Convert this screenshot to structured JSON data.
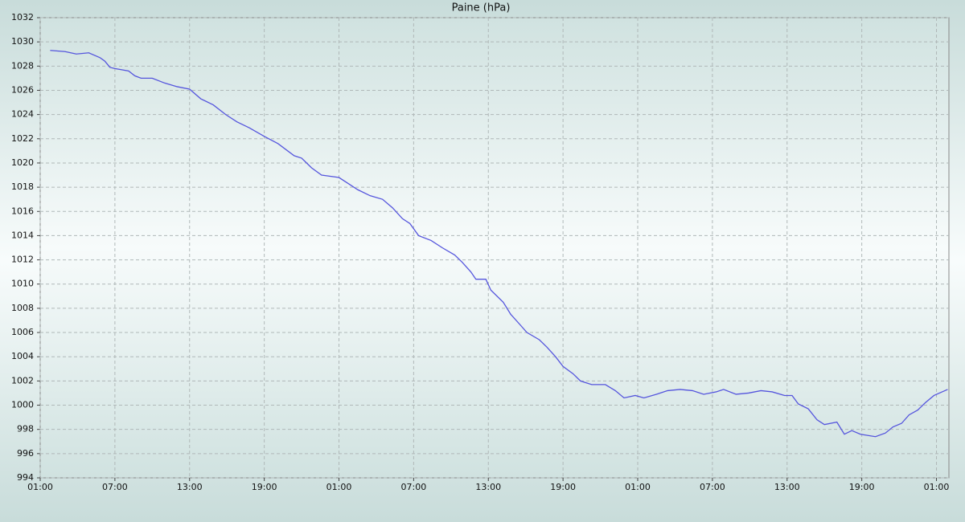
{
  "chart_data": {
    "type": "line",
    "title": "Paine (hPa)",
    "x": [
      0.8,
      2.0,
      2.9,
      3.9,
      4.8,
      5.2,
      5.6,
      6.0,
      7.1,
      7.6,
      8.1,
      9.0,
      10.0,
      11.0,
      12.0,
      12.9,
      13.9,
      14.9,
      15.8,
      16.8,
      18.0,
      19.1,
      20.4,
      21.0,
      21.8,
      22.6,
      24.0,
      24.6,
      25.5,
      26.5,
      27.5,
      28.3,
      29.1,
      29.7,
      30.4,
      31.4,
      32.3,
      33.3,
      33.9,
      34.6,
      35.0,
      35.8,
      36.2,
      37.2,
      37.8,
      38.5,
      39.1,
      40.1,
      40.7,
      41.4,
      42.0,
      42.8,
      43.4,
      44.3,
      45.4,
      46.2,
      46.9,
      47.8,
      48.5,
      49.5,
      50.4,
      51.4,
      52.4,
      53.3,
      54.3,
      54.9,
      55.9,
      56.9,
      57.9,
      58.8,
      59.8,
      60.4,
      60.9,
      61.7,
      62.4,
      63.0,
      64.0,
      64.6,
      65.2,
      65.9,
      67.1,
      67.9,
      68.5,
      69.2,
      69.8,
      70.5,
      71.1,
      71.8,
      72.9
    ],
    "series": [
      {
        "color": "#5555dd",
        "values": [
          1029.3,
          1029.2,
          1029.0,
          1029.1,
          1028.7,
          1028.4,
          1027.9,
          1027.8,
          1027.6,
          1027.2,
          1027.0,
          1027.0,
          1026.6,
          1026.3,
          1026.1,
          1025.3,
          1024.8,
          1024.0,
          1023.4,
          1022.9,
          1022.2,
          1021.6,
          1020.6,
          1020.4,
          1019.6,
          1019.0,
          1018.8,
          1018.4,
          1017.8,
          1017.3,
          1017.0,
          1016.3,
          1015.4,
          1015.0,
          1014.0,
          1013.6,
          1013.0,
          1012.4,
          1011.8,
          1011.0,
          1010.4,
          1010.4,
          1009.5,
          1008.5,
          1007.5,
          1006.7,
          1006.0,
          1005.4,
          1004.8,
          1004.0,
          1003.2,
          1002.6,
          1002.0,
          1001.7,
          1001.7,
          1001.2,
          1000.6,
          1000.8,
          1000.6,
          1000.9,
          1001.2,
          1001.3,
          1001.2,
          1000.9,
          1001.1,
          1001.3,
          1000.9,
          1001.0,
          1001.2,
          1001.1,
          1000.8,
          1000.8,
          1000.1,
          999.7,
          998.8,
          998.4,
          998.6,
          997.6,
          997.9,
          997.6,
          997.4,
          997.7,
          998.2,
          998.5,
          999.2,
          999.6,
          1000.2,
          1000.8,
          1001.3
        ]
      }
    ],
    "xlim": [
      0,
      73
    ],
    "xticks": [
      {
        "value": 0,
        "label": "01:00"
      },
      {
        "value": 6,
        "label": "07:00"
      },
      {
        "value": 12,
        "label": "13:00"
      },
      {
        "value": 18,
        "label": "19:00"
      },
      {
        "value": 24,
        "label": "01:00"
      },
      {
        "value": 30,
        "label": "07:00"
      },
      {
        "value": 36,
        "label": "13:00"
      },
      {
        "value": 42,
        "label": "19:00"
      },
      {
        "value": 48,
        "label": "01:00"
      },
      {
        "value": 54,
        "label": "07:00"
      },
      {
        "value": 60,
        "label": "13:00"
      },
      {
        "value": 66,
        "label": "19:00"
      },
      {
        "value": 72,
        "label": "01:00"
      }
    ],
    "ylim": [
      994,
      1032
    ],
    "yticks": [
      994,
      996,
      998,
      1000,
      1002,
      1004,
      1006,
      1008,
      1010,
      1012,
      1014,
      1016,
      1018,
      1020,
      1022,
      1024,
      1026,
      1028,
      1030,
      1032
    ],
    "grid": true
  }
}
